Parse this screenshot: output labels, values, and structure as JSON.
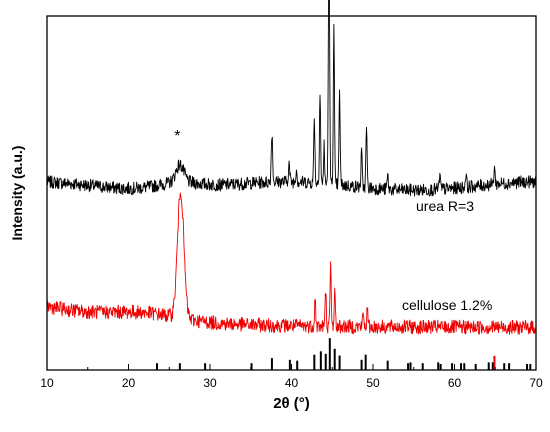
{
  "chart_data": {
    "type": "line",
    "xlabel": "2θ (°)",
    "ylabel": "Intensity (a.u.)",
    "xlim": [
      10,
      70
    ],
    "xticks": [
      10,
      20,
      30,
      40,
      50,
      60,
      70
    ],
    "y_tick_labels": false,
    "grid": false,
    "series": [
      {
        "name": "urea R=3",
        "color": "#000000",
        "baseline": 0.52,
        "noise": 0.018,
        "peaks": [
          {
            "x": 26.3,
            "h": 0.05,
            "w": 0.7
          },
          {
            "x": 37.6,
            "h": 0.14,
            "w": 0.12
          },
          {
            "x": 39.7,
            "h": 0.05,
            "w": 0.12
          },
          {
            "x": 40.6,
            "h": 0.04,
            "w": 0.1
          },
          {
            "x": 42.8,
            "h": 0.19,
            "w": 0.1
          },
          {
            "x": 43.5,
            "h": 0.26,
            "w": 0.1
          },
          {
            "x": 44.0,
            "h": 0.12,
            "w": 0.08
          },
          {
            "x": 44.6,
            "h": 0.7,
            "w": 0.11
          },
          {
            "x": 45.2,
            "h": 0.44,
            "w": 0.1
          },
          {
            "x": 45.9,
            "h": 0.26,
            "w": 0.1
          },
          {
            "x": 48.6,
            "h": 0.1,
            "w": 0.1
          },
          {
            "x": 49.2,
            "h": 0.17,
            "w": 0.1
          },
          {
            "x": 51.8,
            "h": 0.04,
            "w": 0.1
          },
          {
            "x": 58.2,
            "h": 0.04,
            "w": 0.1
          },
          {
            "x": 61.4,
            "h": 0.04,
            "w": 0.1
          },
          {
            "x": 64.9,
            "h": 0.05,
            "w": 0.1
          }
        ]
      },
      {
        "name": "cellulose 1.2%",
        "color": "#ee0000",
        "baseline": 0.12,
        "noise": 0.02,
        "peaks": [
          {
            "x": 26.4,
            "h": 0.36,
            "w": 0.55
          },
          {
            "x": 42.9,
            "h": 0.08,
            "w": 0.1
          },
          {
            "x": 44.2,
            "h": 0.1,
            "w": 0.1
          },
          {
            "x": 44.8,
            "h": 0.17,
            "w": 0.1
          },
          {
            "x": 45.3,
            "h": 0.1,
            "w": 0.1
          },
          {
            "x": 48.8,
            "h": 0.04,
            "w": 0.1
          },
          {
            "x": 49.3,
            "h": 0.05,
            "w": 0.1
          }
        ]
      }
    ],
    "reference_lines": [
      {
        "x": 23.5,
        "h": 0.16
      },
      {
        "x": 26.3,
        "h": 0.16
      },
      {
        "x": 29.4,
        "h": 0.16
      },
      {
        "x": 35.1,
        "h": 0.16
      },
      {
        "x": 37.6,
        "h": 0.28
      },
      {
        "x": 39.8,
        "h": 0.24
      },
      {
        "x": 40.7,
        "h": 0.22
      },
      {
        "x": 42.8,
        "h": 0.36
      },
      {
        "x": 43.6,
        "h": 0.44
      },
      {
        "x": 44.2,
        "h": 0.38
      },
      {
        "x": 44.7,
        "h": 0.75
      },
      {
        "x": 45.3,
        "h": 0.5
      },
      {
        "x": 45.9,
        "h": 0.34
      },
      {
        "x": 48.6,
        "h": 0.24
      },
      {
        "x": 49.1,
        "h": 0.36
      },
      {
        "x": 51.8,
        "h": 0.22
      },
      {
        "x": 54.3,
        "h": 0.16
      },
      {
        "x": 54.6,
        "h": 0.18
      },
      {
        "x": 56.1,
        "h": 0.16
      },
      {
        "x": 58.0,
        "h": 0.18
      },
      {
        "x": 58.3,
        "h": 0.14
      },
      {
        "x": 59.7,
        "h": 0.16
      },
      {
        "x": 60.8,
        "h": 0.16
      },
      {
        "x": 61.2,
        "h": 0.16
      },
      {
        "x": 62.6,
        "h": 0.14
      },
      {
        "x": 64.2,
        "h": 0.18
      },
      {
        "x": 64.7,
        "h": 0.18
      },
      {
        "x": 66.1,
        "h": 0.16
      },
      {
        "x": 66.7,
        "h": 0.16
      },
      {
        "x": 68.9,
        "h": 0.14
      },
      {
        "x": 69.3,
        "h": 0.14
      }
    ],
    "reference_color": "#000000",
    "highlight_line": {
      "x": 64.9,
      "color": "#ee0000"
    },
    "annotations": [
      {
        "text": "*",
        "x": 26.0,
        "series": 0,
        "above": 0.09
      }
    ]
  }
}
